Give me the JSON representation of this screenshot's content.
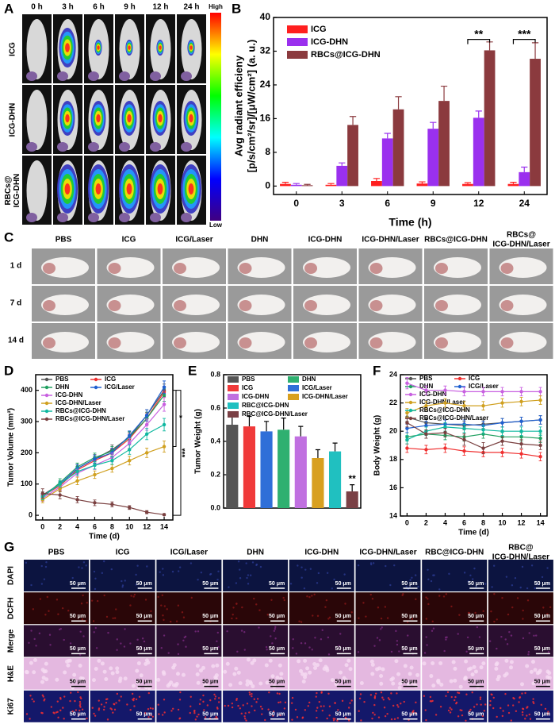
{
  "panel_labels": {
    "a": "A",
    "b": "B",
    "c": "C",
    "d": "D",
    "e": "E",
    "f": "F",
    "g": "G"
  },
  "panel_a": {
    "times": [
      "0 h",
      "3 h",
      "6 h",
      "9 h",
      "12 h",
      "24 h"
    ],
    "rows": [
      [
        "ICG"
      ],
      [
        "ICG-DHN"
      ],
      [
        "RBCs@",
        "ICG-DHN"
      ]
    ],
    "scale": {
      "high": "High",
      "low": "Low"
    }
  },
  "panel_c": {
    "groups": [
      [
        "PBS"
      ],
      [
        "ICG"
      ],
      [
        "ICG/Laser"
      ],
      [
        "DHN"
      ],
      [
        "ICG-DHN"
      ],
      [
        "ICG-DHN/Laser"
      ],
      [
        "RBCs@ICG-DHN"
      ],
      [
        "RBCs@",
        "ICG-DHN/Laser"
      ]
    ],
    "days": [
      "1 d",
      "7 d",
      "14 d"
    ]
  },
  "panel_g": {
    "groups": [
      [
        "PBS"
      ],
      [
        "ICG"
      ],
      [
        "ICG/Laser"
      ],
      [
        "DHN"
      ],
      [
        "ICG-DHN"
      ],
      [
        "ICG-DHN/Laser"
      ],
      [
        "RBC@ICG-DHN"
      ],
      [
        "RBC@",
        "ICG-DHN/Laser"
      ]
    ],
    "stains": [
      "DAPI",
      "DCFH",
      "Merge",
      "H&E",
      "Ki67"
    ],
    "scale_bar": "50 μm"
  },
  "chart_data": [
    {
      "type": "bar",
      "xlabel": "Time (h)",
      "ylabel": [
        "Avg radiant efficieny",
        "[p/s/cm²/sr]/[μW/cm²] (a. u.)"
      ],
      "categories": [
        "0",
        "3",
        "6",
        "9",
        "12",
        "24"
      ],
      "series": [
        {
          "name": "ICG",
          "color": "#ff1f1f",
          "values": [
            0.5,
            0.3,
            1.2,
            0.6,
            0.5,
            0.5
          ],
          "errors": [
            0.4,
            0.3,
            0.6,
            0.4,
            0.3,
            0.4
          ]
        },
        {
          "name": "ICG-DHN",
          "color": "#9a30ee",
          "values": [
            0.3,
            4.8,
            11.3,
            13.6,
            16.2,
            3.3
          ],
          "errors": [
            0.3,
            0.7,
            1.2,
            1.5,
            1.6,
            1.2
          ]
        },
        {
          "name": "RBCs@ICG-DHN",
          "color": "#8b3a3e",
          "values": [
            0.2,
            14.5,
            18.2,
            20.2,
            32.2,
            30.2
          ],
          "errors": [
            0.2,
            2.0,
            3.0,
            3.5,
            2.0,
            3.8
          ]
        }
      ],
      "ylim": [
        -2,
        40
      ],
      "yticks": [
        0,
        8,
        16,
        24,
        32,
        40
      ],
      "annotations": [
        "**",
        "***"
      ]
    },
    {
      "type": "line",
      "xlabel": "Time (d)",
      "ylabel": "Tumor Volume (mm³)",
      "x": [
        0,
        2,
        4,
        6,
        8,
        10,
        12,
        14
      ],
      "series": [
        {
          "name": "PBS",
          "color": "#555555",
          "values": [
            65,
            100,
            150,
            180,
            210,
            250,
            320,
            400
          ],
          "errors": [
            10,
            10,
            12,
            14,
            15,
            15,
            18,
            20
          ]
        },
        {
          "name": "ICG",
          "color": "#f03030",
          "values": [
            62,
            95,
            145,
            175,
            200,
            245,
            310,
            395
          ],
          "errors": [
            8,
            10,
            12,
            13,
            14,
            15,
            18,
            18
          ]
        },
        {
          "name": "DHN",
          "color": "#20a060",
          "values": [
            58,
            105,
            155,
            185,
            205,
            250,
            310,
            385
          ],
          "errors": [
            10,
            12,
            12,
            14,
            15,
            18,
            20,
            20
          ]
        },
        {
          "name": "ICG/Laser",
          "color": "#2060d0",
          "values": [
            60,
            100,
            150,
            180,
            200,
            255,
            320,
            410
          ],
          "errors": [
            10,
            10,
            12,
            13,
            14,
            15,
            18,
            20
          ]
        },
        {
          "name": "ICG-DHN",
          "color": "#c860e0",
          "values": [
            55,
            90,
            135,
            160,
            185,
            230,
            290,
            355
          ],
          "errors": [
            10,
            10,
            12,
            13,
            14,
            16,
            18,
            22
          ]
        },
        {
          "name": "ICG-DHN/Laser",
          "color": "#d0a020",
          "values": [
            50,
            85,
            110,
            130,
            150,
            175,
            200,
            220
          ],
          "errors": [
            10,
            10,
            12,
            12,
            12,
            14,
            15,
            18
          ]
        },
        {
          "name": "RBCs@ICG-DHN",
          "color": "#10b8a0",
          "values": [
            60,
            100,
            140,
            160,
            175,
            210,
            260,
            290
          ],
          "errors": [
            10,
            10,
            12,
            12,
            12,
            15,
            18,
            20
          ]
        },
        {
          "name": "RBCs@ICG-DHN/Laser",
          "color": "#7a4040",
          "values": [
            70,
            65,
            50,
            40,
            35,
            25,
            10,
            2
          ],
          "errors": [
            15,
            12,
            10,
            9,
            8,
            6,
            5,
            3
          ]
        }
      ],
      "xlim": [
        -0.8,
        15
      ],
      "xticks": [
        0,
        2,
        4,
        6,
        8,
        10,
        12,
        14
      ],
      "ylim": [
        -15,
        450
      ],
      "yticks": [
        0,
        100,
        200,
        300,
        400
      ],
      "annotations": [
        "*",
        "***"
      ]
    },
    {
      "type": "bar",
      "ylabel": "Tumor Weight (g)",
      "categories": [
        "PBS",
        "ICG",
        "ICG/Laser",
        "DHN",
        "ICG-DHN",
        "ICG-DHN/Laser",
        "RBC@ICG-DHN",
        "RBC@ICG-DHN/Laser"
      ],
      "colors": [
        "#555555",
        "#f03a3a",
        "#2f6fd8",
        "#2fb070",
        "#c070e0",
        "#d8a020",
        "#20c0c0",
        "#7a4045"
      ],
      "values": [
        0.5,
        0.49,
        0.46,
        0.47,
        0.43,
        0.3,
        0.34,
        0.1
      ],
      "errors": [
        0.07,
        0.06,
        0.06,
        0.07,
        0.06,
        0.05,
        0.05,
        0.04
      ],
      "ylim": [
        0,
        0.8
      ],
      "yticks": [
        {
          "value": 0,
          "label": "0.0"
        },
        0.2,
        0.4,
        0.6,
        0.8
      ],
      "annotations": [
        "**"
      ]
    },
    {
      "type": "line",
      "xlabel": "Time (d)",
      "ylabel": "Body Weight (g)",
      "x": [
        0,
        2,
        4,
        6,
        8,
        10,
        12,
        14
      ],
      "series": [
        {
          "name": "PBS",
          "color": "#555555",
          "values": [
            21.0,
            20.6,
            20.5,
            20.4,
            20.5,
            20.6,
            20.7,
            20.8
          ],
          "errors": [
            0.3,
            0.3,
            0.3,
            0.3,
            0.3,
            0.3,
            0.3,
            0.3
          ]
        },
        {
          "name": "ICG",
          "color": "#f03030",
          "values": [
            18.8,
            18.7,
            18.8,
            18.6,
            18.5,
            18.5,
            18.4,
            18.2
          ],
          "errors": [
            0.3,
            0.3,
            0.3,
            0.3,
            0.3,
            0.3,
            0.3,
            0.3
          ]
        },
        {
          "name": "DHN",
          "color": "#20a060",
          "values": [
            19.6,
            19.8,
            19.7,
            19.6,
            19.8,
            19.6,
            19.6,
            19.5
          ],
          "errors": [
            0.3,
            0.3,
            0.3,
            0.3,
            0.3,
            0.3,
            0.3,
            0.3
          ]
        },
        {
          "name": "ICG/Laser",
          "color": "#2060d0",
          "values": [
            20.2,
            20.4,
            20.5,
            20.5,
            20.4,
            20.6,
            20.7,
            20.8
          ],
          "errors": [
            0.3,
            0.3,
            0.3,
            0.3,
            0.3,
            0.3,
            0.3,
            0.3
          ]
        },
        {
          "name": "ICG-DHN",
          "color": "#c860e0",
          "values": [
            23.4,
            22.9,
            22.9,
            22.8,
            22.8,
            22.8,
            22.8,
            22.8
          ],
          "errors": [
            0.4,
            0.3,
            0.3,
            0.3,
            0.3,
            0.3,
            0.3,
            0.3
          ]
        },
        {
          "name": "ICG-DHN/Laser",
          "color": "#d0a020",
          "values": [
            21.3,
            21.8,
            22.0,
            21.8,
            21.8,
            22.0,
            22.1,
            22.2
          ],
          "errors": [
            0.3,
            0.3,
            0.3,
            0.3,
            0.3,
            0.3,
            0.3,
            0.3
          ]
        },
        {
          "name": "RBCs@ICG-DHN",
          "color": "#10b8a0",
          "values": [
            19.4,
            20.0,
            20.3,
            20.2,
            20.1,
            20.0,
            20.0,
            20.0
          ],
          "errors": [
            0.3,
            0.3,
            0.3,
            0.3,
            0.3,
            0.3,
            0.3,
            0.3
          ]
        },
        {
          "name": "RBCs@ICG-DHN/Laser",
          "color": "#7a4040",
          "values": [
            20.6,
            19.8,
            19.9,
            19.4,
            18.8,
            19.3,
            19.1,
            19.0
          ],
          "errors": [
            0.3,
            0.3,
            0.3,
            0.4,
            0.4,
            0.3,
            0.3,
            0.3
          ]
        }
      ],
      "xlim": [
        -0.7,
        14.7
      ],
      "xticks": [
        0,
        2,
        4,
        6,
        8,
        10,
        12,
        14
      ],
      "ylim": [
        14,
        24
      ],
      "yticks": [
        14,
        16,
        18,
        20,
        22,
        24
      ]
    }
  ]
}
